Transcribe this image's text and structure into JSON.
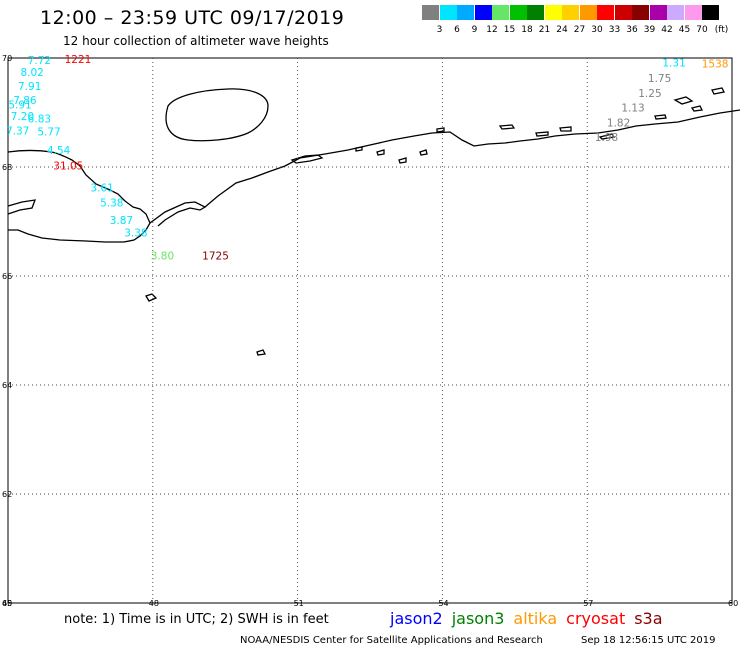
{
  "header": {
    "title": "12:00 – 23:59 UTC 09/17/2019",
    "subtitle": "12 hour collection of altimeter wave heights"
  },
  "legend": {
    "unit": "(ft)",
    "levels": [
      "3",
      "6",
      "9",
      "12",
      "15",
      "18",
      "21",
      "24",
      "27",
      "30",
      "33",
      "36",
      "39",
      "42",
      "45",
      "70"
    ],
    "colors": [
      "#808080",
      "#00e5ff",
      "#00aaff",
      "#0000ff",
      "#66e666",
      "#00c000",
      "#008000",
      "#ffff00",
      "#ffd000",
      "#ff9900",
      "#ff0000",
      "#cc0000",
      "#880000",
      "#aa00aa",
      "#ccaaff",
      "#ff99ee",
      "#000000"
    ]
  },
  "map": {
    "lat_labels": [
      "70",
      "68",
      "66",
      "64",
      "62",
      "60"
    ],
    "lon_labels": [
      "45",
      "48",
      "51",
      "54",
      "57",
      "60"
    ],
    "lat_range": [
      60,
      70
    ],
    "lon_range": [
      45,
      60
    ],
    "grid": true
  },
  "chart_data": {
    "type": "scatter",
    "points": [
      {
        "lon": 45.65,
        "lat": 69.96,
        "v": "7.72",
        "color": "#00e5ff"
      },
      {
        "lon": 46.45,
        "lat": 69.98,
        "v": "1221",
        "color": "#ff0000"
      },
      {
        "lon": 45.5,
        "lat": 69.74,
        "v": "8.02",
        "color": "#00e5ff"
      },
      {
        "lon": 45.45,
        "lat": 69.49,
        "v": "7.91",
        "color": "#00e5ff"
      },
      {
        "lon": 45.35,
        "lat": 69.23,
        "v": "7.86",
        "color": "#00e5ff"
      },
      {
        "lon": 45.25,
        "lat": 69.15,
        "v": "5.91",
        "color": "#00e5ff"
      },
      {
        "lon": 45.3,
        "lat": 68.94,
        "v": "7.20",
        "color": "#00e5ff"
      },
      {
        "lon": 45.65,
        "lat": 68.89,
        "v": "6.83",
        "color": "#00e5ff"
      },
      {
        "lon": 45.2,
        "lat": 68.67,
        "v": "7.37",
        "color": "#00e5ff"
      },
      {
        "lon": 45.85,
        "lat": 68.65,
        "v": "5.77",
        "color": "#00e5ff"
      },
      {
        "lon": 46.05,
        "lat": 68.31,
        "v": "4.54",
        "color": "#00e5ff"
      },
      {
        "lon": 46.25,
        "lat": 68.03,
        "v": "31.05",
        "color": "#ff0000"
      },
      {
        "lon": 46.95,
        "lat": 67.62,
        "v": "3.61",
        "color": "#00e5ff"
      },
      {
        "lon": 47.15,
        "lat": 67.35,
        "v": "5.38",
        "color": "#00e5ff"
      },
      {
        "lon": 47.35,
        "lat": 67.03,
        "v": "3.87",
        "color": "#00e5ff"
      },
      {
        "lon": 47.65,
        "lat": 66.8,
        "v": "3.38",
        "color": "#00e5ff"
      },
      {
        "lon": 48.2,
        "lat": 66.38,
        "v": "3.80",
        "color": "#66e666"
      },
      {
        "lon": 49.3,
        "lat": 66.38,
        "v": "1725",
        "color": "#880000"
      },
      {
        "lon": 58.8,
        "lat": 69.92,
        "v": "1.31",
        "color": "#00e5ff"
      },
      {
        "lon": 59.65,
        "lat": 69.9,
        "v": "1538",
        "color": "#ff9900"
      },
      {
        "lon": 58.5,
        "lat": 69.63,
        "v": "1.75",
        "color": "#808080"
      },
      {
        "lon": 58.3,
        "lat": 69.36,
        "v": "1.25",
        "color": "#808080"
      },
      {
        "lon": 57.95,
        "lat": 69.09,
        "v": "1.13",
        "color": "#808080"
      },
      {
        "lon": 57.65,
        "lat": 68.82,
        "v": "1.82",
        "color": "#808080"
      },
      {
        "lon": 57.4,
        "lat": 68.55,
        "v": "1.98",
        "color": "#808080"
      }
    ]
  },
  "footer": {
    "note": "note:  1) Time is in UTC;  2) SWH is in feet",
    "satellites": [
      {
        "name": "jason2",
        "color": "#0000ff"
      },
      {
        "name": "jason3",
        "color": "#008000"
      },
      {
        "name": "altika",
        "color": "#ff9900"
      },
      {
        "name": "cryosat",
        "color": "#ff0000"
      },
      {
        "name": "s3a",
        "color": "#880000"
      }
    ],
    "credit": "NOAA/NESDIS Center for Satellite Applications and Research",
    "timestamp": "Sep 18 12:56:15 UTC 2019"
  }
}
